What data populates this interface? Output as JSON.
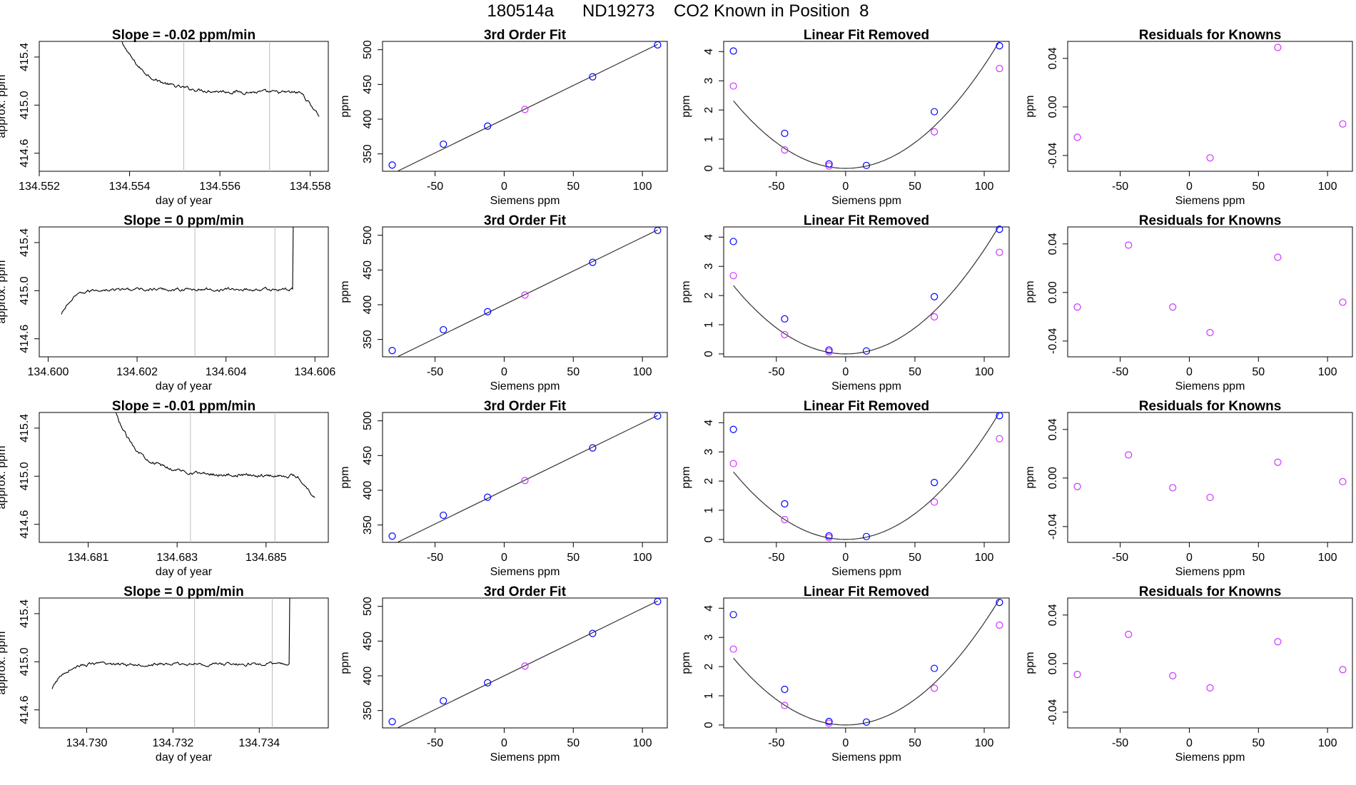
{
  "figure": {
    "title": "180514a      ND19273    CO2 Known in Position  8"
  },
  "colors": {
    "axes": "#000000",
    "trace": "#000000",
    "vline": "#bbbbbb",
    "measured": "#0000ff",
    "known": "#cc33ff",
    "fitline": "#333333"
  },
  "chart_data": [
    {
      "type": "line",
      "row": 1,
      "col": 1,
      "title": "Slope =  -0.02  ppm/min",
      "xlabel": "day of year",
      "ylabel": "approx. ppm",
      "xlim": [
        134.552,
        134.5584
      ],
      "ylim": [
        414.45,
        415.53
      ],
      "xticks": [
        "134.552",
        "134.554",
        "134.556",
        "134.558"
      ],
      "yticks": [
        "414.6",
        "415.0",
        "415.4"
      ],
      "vlines": [
        134.5552,
        134.5571
      ],
      "shape": "settle",
      "trace": {
        "x_start": 134.5537,
        "x_end": 134.5582,
        "level": 415.1,
        "drop": 414.91,
        "drop_start": 134.5578,
        "start_level": 415.6
      }
    },
    {
      "type": "line",
      "row": 2,
      "col": 1,
      "title": "Slope =  0  ppm/min",
      "xlabel": "day of year",
      "ylabel": "approx. ppm",
      "xlim": [
        134.5998,
        134.6063
      ],
      "ylim": [
        414.45,
        415.53
      ],
      "xticks": [
        "134.600",
        "134.602",
        "134.604",
        "134.606"
      ],
      "yticks": [
        "414.6",
        "415.0",
        "415.4"
      ],
      "vlines": [
        134.6033,
        134.6051
      ],
      "shape": "rise",
      "trace": {
        "x_start": 134.6003,
        "x_end": 134.6056,
        "level": 415.01,
        "low": 414.8,
        "rise_end": 134.6012,
        "spike_at": 134.6055
      }
    },
    {
      "type": "line",
      "row": 3,
      "col": 1,
      "title": "Slope =  -0.01  ppm/min",
      "xlabel": "day of year",
      "ylabel": "approx. ppm",
      "xlim": [
        134.6799,
        134.6864
      ],
      "ylim": [
        414.45,
        415.53
      ],
      "xticks": [
        "134.681",
        "134.683",
        "134.685"
      ],
      "yticks": [
        "414.6",
        "415.0",
        "415.4"
      ],
      "vlines": [
        134.6833,
        134.6852
      ],
      "shape": "settle",
      "trace": {
        "x_start": 134.6815,
        "x_end": 134.6861,
        "level": 415.0,
        "drop": 414.82,
        "drop_start": 134.6857,
        "start_level": 415.6
      }
    },
    {
      "type": "line",
      "row": 4,
      "col": 1,
      "title": "Slope =  0  ppm/min",
      "xlabel": "day of year",
      "ylabel": "approx. ppm",
      "xlim": [
        134.7289,
        134.7356
      ],
      "ylim": [
        414.45,
        415.53
      ],
      "xticks": [
        "134.730",
        "134.732",
        "134.734"
      ],
      "yticks": [
        "414.6",
        "415.0",
        "415.4"
      ],
      "vlines": [
        134.7325,
        134.7343
      ],
      "shape": "rise",
      "trace": {
        "x_start": 134.7292,
        "x_end": 134.7348,
        "level": 414.98,
        "low": 414.77,
        "rise_end": 134.7301,
        "spike_at": 134.7347
      }
    },
    {
      "type": "scatter",
      "row": 1,
      "col": 2,
      "title": "3rd Order Fit",
      "xlabel": "Siemens ppm",
      "ylabel": "ppm",
      "xlim": [
        -88,
        118
      ],
      "ylim": [
        325,
        512
      ],
      "xticks": [
        "-50",
        "0",
        "50",
        "100"
      ],
      "yticks": [
        "350",
        "400",
        "450",
        "500"
      ],
      "line": {
        "slope": 0.9705,
        "intercept": 400.0
      },
      "measured": {
        "x": [
          -81,
          -44,
          -12,
          64,
          111
        ],
        "y": [
          334,
          364,
          390,
          461,
          507
        ]
      },
      "known": {
        "x": [
          15
        ],
        "y": [
          414
        ]
      }
    },
    {
      "type": "scatter",
      "row": 2,
      "col": 2,
      "title": "3rd Order Fit",
      "xlabel": "Siemens ppm",
      "ylabel": "ppm",
      "xlim": [
        -88,
        118
      ],
      "ylim": [
        325,
        512
      ],
      "xticks": [
        "-50",
        "0",
        "50",
        "100"
      ],
      "yticks": [
        "350",
        "400",
        "450",
        "500"
      ],
      "line": {
        "slope": 0.9705,
        "intercept": 400.0
      },
      "measured": {
        "x": [
          -81,
          -44,
          -12,
          64,
          111
        ],
        "y": [
          334,
          364,
          390,
          461,
          507
        ]
      },
      "known": {
        "x": [
          15
        ],
        "y": [
          414
        ]
      }
    },
    {
      "type": "scatter",
      "row": 3,
      "col": 2,
      "title": "3rd Order Fit",
      "xlabel": "Siemens ppm",
      "ylabel": "ppm",
      "xlim": [
        -88,
        118
      ],
      "ylim": [
        325,
        512
      ],
      "xticks": [
        "-50",
        "0",
        "50",
        "100"
      ],
      "yticks": [
        "350",
        "400",
        "450",
        "500"
      ],
      "line": {
        "slope": 0.9705,
        "intercept": 400.0
      },
      "measured": {
        "x": [
          -81,
          -44,
          -12,
          64,
          111
        ],
        "y": [
          334,
          364,
          390,
          461,
          507
        ]
      },
      "known": {
        "x": [
          15
        ],
        "y": [
          414
        ]
      }
    },
    {
      "type": "scatter",
      "row": 4,
      "col": 2,
      "title": "3rd Order Fit",
      "xlabel": "Siemens ppm",
      "ylabel": "ppm",
      "xlim": [
        -88,
        118
      ],
      "ylim": [
        325,
        512
      ],
      "xticks": [
        "-50",
        "0",
        "50",
        "100"
      ],
      "yticks": [
        "350",
        "400",
        "450",
        "500"
      ],
      "line": {
        "slope": 0.9705,
        "intercept": 400.0
      },
      "measured": {
        "x": [
          -81,
          -44,
          -12,
          64,
          111
        ],
        "y": [
          334,
          364,
          390,
          461,
          507
        ]
      },
      "known": {
        "x": [
          15
        ],
        "y": [
          414
        ]
      }
    },
    {
      "type": "scatter",
      "row": 1,
      "col": 3,
      "title": "Linear Fit Removed",
      "xlabel": "Siemens ppm",
      "ylabel": "ppm",
      "xlim": [
        -88,
        118
      ],
      "ylim": [
        -0.1,
        4.35
      ],
      "xticks": [
        "-50",
        "0",
        "50",
        "100"
      ],
      "yticks": [
        "0",
        "1",
        "2",
        "3",
        "4"
      ],
      "curve": {
        "a": 0.000353,
        "b": 0.0,
        "c": 0.0,
        "x_from": -81,
        "x_to": 111
      },
      "measured": {
        "x": [
          -81,
          -44,
          -12,
          15,
          64,
          111
        ],
        "y": [
          4.02,
          1.2,
          0.15,
          0.1,
          1.94,
          4.2
        ]
      },
      "known": {
        "x": [
          -81,
          -44,
          -12,
          64,
          111
        ],
        "y": [
          2.82,
          0.63,
          0.08,
          1.25,
          3.42
        ]
      }
    },
    {
      "type": "scatter",
      "row": 2,
      "col": 3,
      "title": "Linear Fit Removed",
      "xlabel": "Siemens ppm",
      "ylabel": "ppm",
      "xlim": [
        -88,
        118
      ],
      "ylim": [
        -0.1,
        4.35
      ],
      "xticks": [
        "-50",
        "0",
        "50",
        "100"
      ],
      "yticks": [
        "0",
        "1",
        "2",
        "3",
        "4"
      ],
      "curve": {
        "a": 0.000357,
        "b": 0.0,
        "c": 0.0,
        "x_from": -81,
        "x_to": 111
      },
      "measured": {
        "x": [
          -81,
          -44,
          -12,
          15,
          64,
          111
        ],
        "y": [
          3.85,
          1.2,
          0.13,
          0.1,
          1.96,
          4.27
        ]
      },
      "known": {
        "x": [
          -81,
          -44,
          -12,
          64,
          111
        ],
        "y": [
          2.68,
          0.66,
          0.07,
          1.27,
          3.48
        ]
      }
    },
    {
      "type": "scatter",
      "row": 3,
      "col": 3,
      "title": "Linear Fit Removed",
      "xlabel": "Siemens ppm",
      "ylabel": "ppm",
      "xlim": [
        -88,
        118
      ],
      "ylim": [
        -0.1,
        4.35
      ],
      "xticks": [
        "-50",
        "0",
        "50",
        "100"
      ],
      "yticks": [
        "0",
        "1",
        "2",
        "3",
        "4"
      ],
      "curve": {
        "a": 0.000353,
        "b": 0.0,
        "c": 0.0,
        "x_from": -81,
        "x_to": 111
      },
      "measured": {
        "x": [
          -81,
          -44,
          -12,
          15,
          64,
          111
        ],
        "y": [
          3.77,
          1.22,
          0.12,
          0.1,
          1.95,
          4.24
        ]
      },
      "known": {
        "x": [
          -81,
          -44,
          -12,
          64,
          111
        ],
        "y": [
          2.6,
          0.68,
          0.06,
          1.28,
          3.45
        ]
      }
    },
    {
      "type": "scatter",
      "row": 4,
      "col": 3,
      "title": "Linear Fit Removed",
      "xlabel": "Siemens ppm",
      "ylabel": "ppm",
      "xlim": [
        -88,
        118
      ],
      "ylim": [
        -0.1,
        4.35
      ],
      "xticks": [
        "-50",
        "0",
        "50",
        "100"
      ],
      "yticks": [
        "0",
        "1",
        "2",
        "3",
        "4"
      ],
      "curve": {
        "a": 0.00035,
        "b": 0.0,
        "c": 0.0,
        "x_from": -81,
        "x_to": 111
      },
      "measured": {
        "x": [
          -81,
          -44,
          -12,
          15,
          64,
          111
        ],
        "y": [
          3.78,
          1.22,
          0.12,
          0.1,
          1.94,
          4.2
        ]
      },
      "known": {
        "x": [
          -81,
          -44,
          -12,
          64,
          111
        ],
        "y": [
          2.6,
          0.67,
          0.06,
          1.26,
          3.42
        ]
      }
    },
    {
      "type": "scatter",
      "row": 1,
      "col": 4,
      "title": "Residuals for Knowns",
      "xlabel": "Siemens ppm",
      "ylabel": "ppm",
      "xlim": [
        -88,
        118
      ],
      "ylim": [
        -0.053,
        0.054
      ],
      "xticks": [
        "-50",
        "0",
        "50",
        "100"
      ],
      "yticks": [
        "-0.04",
        "0.00",
        "0.04"
      ],
      "known": {
        "x": [
          -81,
          15,
          64,
          111
        ],
        "y": [
          -0.025,
          -0.042,
          0.049,
          -0.014
        ]
      }
    },
    {
      "type": "scatter",
      "row": 2,
      "col": 4,
      "title": "Residuals for Knowns",
      "xlabel": "Siemens ppm",
      "ylabel": "ppm",
      "xlim": [
        -88,
        118
      ],
      "ylim": [
        -0.053,
        0.054
      ],
      "xticks": [
        "-50",
        "0",
        "50",
        "100"
      ],
      "yticks": [
        "-0.04",
        "0.00",
        "0.04"
      ],
      "known": {
        "x": [
          -81,
          -44,
          -12,
          15,
          64,
          111
        ],
        "y": [
          -0.012,
          0.039,
          -0.012,
          -0.033,
          0.029,
          -0.008
        ]
      }
    },
    {
      "type": "scatter",
      "row": 3,
      "col": 4,
      "title": "Residuals for Knowns",
      "xlabel": "Siemens ppm",
      "ylabel": "ppm",
      "xlim": [
        -88,
        118
      ],
      "ylim": [
        -0.053,
        0.054
      ],
      "xticks": [
        "-50",
        "0",
        "50",
        "100"
      ],
      "yticks": [
        "-0.04",
        "0.00",
        "0.04"
      ],
      "known": {
        "x": [
          -81,
          -44,
          -12,
          15,
          64,
          111
        ],
        "y": [
          -0.007,
          0.019,
          -0.008,
          -0.016,
          0.013,
          -0.003
        ]
      }
    },
    {
      "type": "scatter",
      "row": 4,
      "col": 4,
      "title": "Residuals for Knowns",
      "xlabel": "Siemens ppm",
      "ylabel": "ppm",
      "xlim": [
        -88,
        118
      ],
      "ylim": [
        -0.053,
        0.054
      ],
      "xticks": [
        "-50",
        "0",
        "50",
        "100"
      ],
      "yticks": [
        "-0.04",
        "0.00",
        "0.04"
      ],
      "known": {
        "x": [
          -81,
          -44,
          -12,
          15,
          64,
          111
        ],
        "y": [
          -0.009,
          0.024,
          -0.01,
          -0.02,
          0.018,
          -0.005
        ]
      }
    }
  ]
}
